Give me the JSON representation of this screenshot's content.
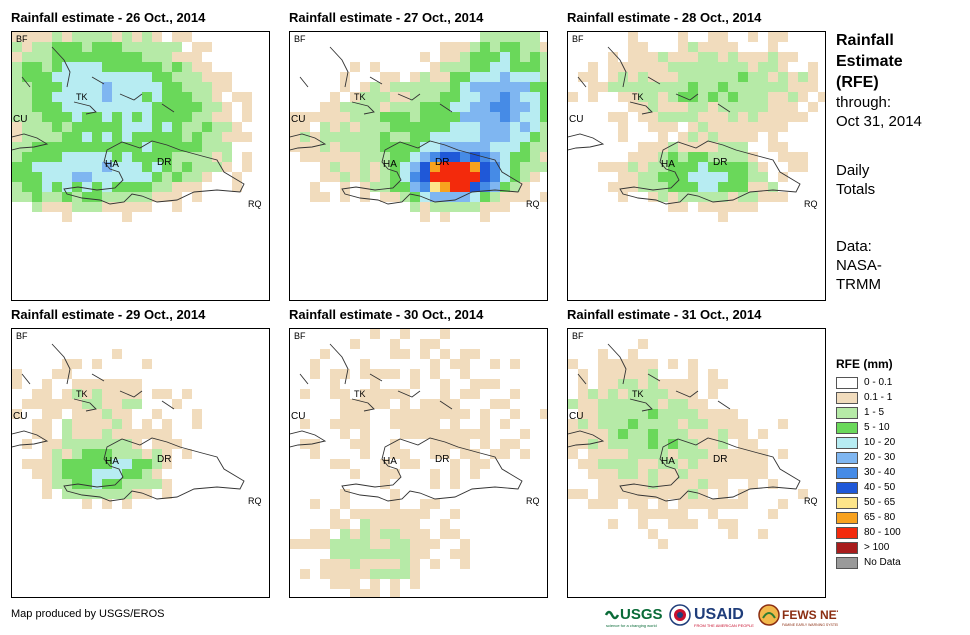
{
  "panels": [
    {
      "title": "Rainfall estimate - 26 Oct., 2014",
      "seed": 26,
      "labels": {
        "bf": "BF",
        "cu": "CU",
        "tk": "TK",
        "ha": "HA",
        "dr": "DR",
        "rq": "RQ"
      }
    },
    {
      "title": "Rainfall estimate - 27 Oct., 2014",
      "seed": 27,
      "labels": {
        "bf": "BF",
        "cu": "CU",
        "tk": "TK",
        "ha": "HA",
        "dr": "DR",
        "rq": "RQ"
      }
    },
    {
      "title": "Rainfall estimate - 28 Oct., 2014",
      "seed": 28,
      "labels": {
        "bf": "BF",
        "cu": "CU",
        "tk": "TK",
        "ha": "HA",
        "dr": "DR",
        "rq": "RQ"
      }
    },
    {
      "title": "Rainfall estimate - 29 Oct., 2014",
      "seed": 29,
      "labels": {
        "bf": "BF",
        "cu": "CU",
        "tk": "TK",
        "ha": "HA",
        "dr": "DR",
        "rq": "RQ"
      }
    },
    {
      "title": "Rainfall estimate - 30 Oct., 2014",
      "seed": 30,
      "labels": {
        "bf": "BF",
        "cu": "CU",
        "tk": "TK",
        "ha": "HA",
        "dr": "DR",
        "rq": "RQ"
      }
    },
    {
      "title": "Rainfall estimate - 31 Oct., 2014",
      "seed": 31,
      "labels": {
        "bf": "BF",
        "cu": "CU",
        "tk": "TK",
        "ha": "HA",
        "dr": "DR",
        "rq": "RQ"
      }
    }
  ],
  "side": {
    "title_line1": "Rainfall",
    "title_line2": "Estimate",
    "title_line3": "(RFE)",
    "through_line1": "through:",
    "through_line2": "Oct 31, 2014",
    "daily_line1": "Daily",
    "daily_line2": "Totals",
    "data_line1": "Data:",
    "data_line2": "NASA-",
    "data_line3": "TRMM"
  },
  "legend": {
    "title": "RFE (mm)",
    "items": [
      {
        "label": "0 - 0.1",
        "color": "#ffffff"
      },
      {
        "label": "0.1 - 1",
        "color": "#f1dcbd"
      },
      {
        "label": "1 - 5",
        "color": "#b6eaa7"
      },
      {
        "label": "5 - 10",
        "color": "#6ad85a"
      },
      {
        "label": "10 - 20",
        "color": "#b7ecf2"
      },
      {
        "label": "20 - 30",
        "color": "#7fb6f1"
      },
      {
        "label": "30 - 40",
        "color": "#468be6"
      },
      {
        "label": "40 - 50",
        "color": "#1f58d8"
      },
      {
        "label": "50 - 65",
        "color": "#fde58a"
      },
      {
        "label": "65 - 80",
        "color": "#f8a21f"
      },
      {
        "label": "80 - 100",
        "color": "#f32a0c"
      },
      {
        "label": "> 100",
        "color": "#a81c1c"
      },
      {
        "label": "No Data",
        "color": "#9a9a9a"
      }
    ]
  },
  "credit": "Map produced by USGS/EROS",
  "logos": {
    "usgs": "USGS",
    "usaid": "USAID",
    "fewsnet": "FEWS NET"
  }
}
